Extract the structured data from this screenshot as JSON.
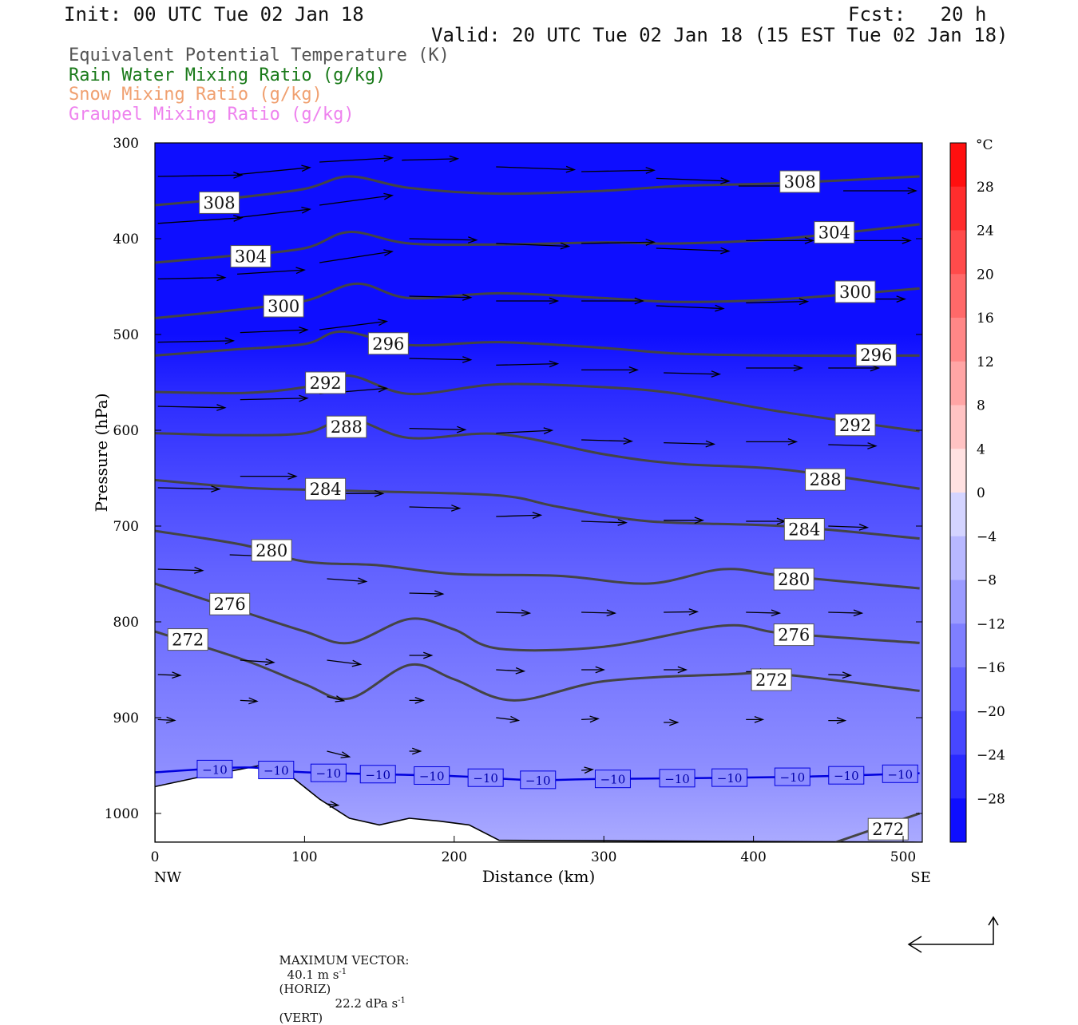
{
  "header": {
    "init": "Init: 00 UTC Tue 02 Jan 18",
    "fcst": "Fcst:   20 h",
    "valid": "Valid: 20 UTC Tue 02 Jan 18 (15 EST Tue 02 Jan 18)"
  },
  "legend": [
    {
      "label": "Equivalent Potential Temperature (K)",
      "color": "#555555"
    },
    {
      "label": "Rain Water Mixing Ratio (g/kg)",
      "color": "#1a7a1a"
    },
    {
      "label": "Snow Mixing Ratio (g/kg)",
      "color": "#f0a070"
    },
    {
      "label": "Graupel Mixing Ratio (g/kg)",
      "color": "#ee82ee"
    }
  ],
  "footer": {
    "max_vector_label": "MAXIMUM VECTOR:",
    "horiz_value": "40.1 m s",
    "horiz_unit": "(HORIZ)",
    "vert_value": "22.2 dPa s",
    "vert_unit": "(VERT)",
    "exponent": "-1"
  },
  "chart_data": {
    "type": "cross-section",
    "xlabel": "Distance (km)",
    "ylabel": "Pressure (hPa)",
    "xlim": [
      0,
      511
    ],
    "ylim": [
      1030,
      300
    ],
    "x_ticks": [
      0,
      100,
      200,
      300,
      400,
      500
    ],
    "y_ticks": [
      300,
      400,
      500,
      600,
      700,
      800,
      900,
      1000
    ],
    "x_end_labels": {
      "left": "NW",
      "right": "SE"
    },
    "colorbar": {
      "unit": "°C",
      "tick_labels": [
        "28",
        "24",
        "20",
        "16",
        "12",
        "8",
        "4",
        "0",
        "−4",
        "−8",
        "−12",
        "−16",
        "−20",
        "−24",
        "−28"
      ],
      "range": [
        -32,
        32
      ]
    },
    "temperature_fill": [
      {
        "p": 300,
        "t": -30
      },
      {
        "p": 500,
        "t": -30
      },
      {
        "p": 560,
        "t": -26
      },
      {
        "p": 650,
        "t": -22
      },
      {
        "p": 750,
        "t": -18
      },
      {
        "p": 850,
        "t": -15
      },
      {
        "p": 950,
        "t": -12
      },
      {
        "p": 1030,
        "t": -8
      }
    ],
    "theta_e_contours": [
      {
        "value": 308,
        "points": [
          [
            0,
            365
          ],
          [
            50,
            358
          ],
          [
            100,
            348
          ],
          [
            130,
            335
          ],
          [
            170,
            347
          ],
          [
            230,
            353
          ],
          [
            300,
            350
          ],
          [
            350,
            345
          ],
          [
            420,
            342
          ],
          [
            511,
            335
          ]
        ],
        "labels": [
          {
            "x": 43,
            "p": 362
          },
          {
            "x": 431,
            "p": 340
          }
        ]
      },
      {
        "value": 304,
        "points": [
          [
            0,
            425
          ],
          [
            50,
            418
          ],
          [
            100,
            410
          ],
          [
            130,
            393
          ],
          [
            170,
            405
          ],
          [
            230,
            406
          ],
          [
            300,
            404
          ],
          [
            350,
            405
          ],
          [
            420,
            400
          ],
          [
            511,
            385
          ]
        ],
        "labels": [
          {
            "x": 64,
            "p": 418
          },
          {
            "x": 454,
            "p": 393
          }
        ]
      },
      {
        "value": 300,
        "points": [
          [
            0,
            483
          ],
          [
            50,
            475
          ],
          [
            100,
            465
          ],
          [
            135,
            447
          ],
          [
            170,
            462
          ],
          [
            230,
            457
          ],
          [
            300,
            462
          ],
          [
            350,
            466
          ],
          [
            420,
            463
          ],
          [
            511,
            452
          ]
        ],
        "labels": [
          {
            "x": 86,
            "p": 470
          },
          {
            "x": 468,
            "p": 455
          }
        ]
      },
      {
        "value": 296,
        "points": [
          [
            0,
            522
          ],
          [
            50,
            516
          ],
          [
            100,
            510
          ],
          [
            125,
            497
          ],
          [
            170,
            511
          ],
          [
            230,
            508
          ],
          [
            300,
            514
          ],
          [
            350,
            520
          ],
          [
            420,
            522
          ],
          [
            511,
            522
          ]
        ],
        "labels": [
          {
            "x": 156,
            "p": 509
          },
          {
            "x": 482,
            "p": 521
          }
        ]
      },
      {
        "value": 292,
        "points": [
          [
            0,
            560
          ],
          [
            60,
            561
          ],
          [
            100,
            555
          ],
          [
            130,
            543
          ],
          [
            170,
            562
          ],
          [
            230,
            552
          ],
          [
            300,
            555
          ],
          [
            350,
            562
          ],
          [
            420,
            581
          ],
          [
            511,
            601
          ]
        ],
        "labels": [
          {
            "x": 114,
            "p": 550
          },
          {
            "x": 468,
            "p": 594
          }
        ]
      },
      {
        "value": 288,
        "points": [
          [
            0,
            603
          ],
          [
            50,
            605
          ],
          [
            100,
            603
          ],
          [
            130,
            588
          ],
          [
            170,
            608
          ],
          [
            230,
            604
          ],
          [
            300,
            625
          ],
          [
            350,
            635
          ],
          [
            420,
            641
          ],
          [
            511,
            661
          ]
        ],
        "labels": [
          {
            "x": 128,
            "p": 596
          },
          {
            "x": 448,
            "p": 651
          }
        ]
      },
      {
        "value": 284,
        "points": [
          [
            0,
            652
          ],
          [
            60,
            660
          ],
          [
            100,
            662
          ],
          [
            150,
            664
          ],
          [
            230,
            668
          ],
          [
            270,
            680
          ],
          [
            330,
            695
          ],
          [
            420,
            700
          ],
          [
            511,
            713
          ]
        ],
        "labels": [
          {
            "x": 114,
            "p": 661
          },
          {
            "x": 434,
            "p": 703
          }
        ]
      },
      {
        "value": 280,
        "points": [
          [
            0,
            705
          ],
          [
            60,
            720
          ],
          [
            100,
            737
          ],
          [
            150,
            741
          ],
          [
            200,
            750
          ],
          [
            270,
            752
          ],
          [
            330,
            760
          ],
          [
            380,
            745
          ],
          [
            420,
            752
          ],
          [
            511,
            765
          ]
        ],
        "labels": [
          {
            "x": 78,
            "p": 725
          },
          {
            "x": 427,
            "p": 755
          }
        ]
      },
      {
        "value": 276,
        "points": [
          [
            0,
            760
          ],
          [
            60,
            790
          ],
          [
            100,
            810
          ],
          [
            130,
            822
          ],
          [
            170,
            797
          ],
          [
            200,
            808
          ],
          [
            230,
            828
          ],
          [
            300,
            826
          ],
          [
            380,
            804
          ],
          [
            420,
            812
          ],
          [
            511,
            822
          ]
        ],
        "labels": [
          {
            "x": 50,
            "p": 781
          },
          {
            "x": 427,
            "p": 813
          }
        ]
      },
      {
        "value": 272,
        "points": [
          [
            0,
            810
          ],
          [
            60,
            840
          ],
          [
            100,
            865
          ],
          [
            130,
            880
          ],
          [
            170,
            845
          ],
          [
            200,
            860
          ],
          [
            240,
            882
          ],
          [
            300,
            862
          ],
          [
            380,
            855
          ],
          [
            420,
            855
          ],
          [
            511,
            872
          ]
        ],
        "labels": [
          {
            "x": 22,
            "p": 818
          },
          {
            "x": 412,
            "p": 860
          }
        ]
      },
      {
        "value": 272,
        "points": [
          [
            455,
            1030
          ],
          [
            511,
            1000
          ]
        ],
        "labels": [
          {
            "x": 490,
            "p": 1016
          }
        ]
      }
    ],
    "isotherm": {
      "value": "−10",
      "color": "#0000dd",
      "points": [
        [
          0,
          957
        ],
        [
          60,
          952
        ],
        [
          100,
          957
        ],
        [
          200,
          961
        ],
        [
          250,
          965
        ],
        [
          300,
          964
        ],
        [
          420,
          962
        ],
        [
          511,
          958
        ]
      ],
      "label_positions": [
        40,
        81,
        116,
        149,
        185,
        221,
        256,
        306,
        349,
        384,
        426,
        462,
        498
      ]
    },
    "terrain": [
      [
        0,
        972
      ],
      [
        30,
        962
      ],
      [
        70,
        950
      ],
      [
        90,
        960
      ],
      [
        110,
        985
      ],
      [
        130,
        1005
      ],
      [
        150,
        1012
      ],
      [
        170,
        1005
      ],
      [
        190,
        1008
      ],
      [
        210,
        1012
      ],
      [
        230,
        1028
      ],
      [
        511,
        1030
      ]
    ],
    "wind_vectors": [
      {
        "x": 2,
        "p": 335,
        "u": 30,
        "w": 0.5
      },
      {
        "x": 55,
        "p": 333,
        "u": 26,
        "w": 2.5
      },
      {
        "x": 110,
        "p": 320,
        "u": 26,
        "w": 1.5
      },
      {
        "x": 2,
        "p": 384,
        "u": 30,
        "w": 2
      },
      {
        "x": 55,
        "p": 378,
        "u": 26,
        "w": 3
      },
      {
        "x": 110,
        "p": 365,
        "u": 26,
        "w": 3.5
      },
      {
        "x": 2,
        "p": 442,
        "u": 24,
        "w": 0.5
      },
      {
        "x": 55,
        "p": 437,
        "u": 24,
        "w": 1.5
      },
      {
        "x": 110,
        "p": 425,
        "u": 26,
        "w": 4
      },
      {
        "x": 2,
        "p": 508,
        "u": 27,
        "w": 0.5
      },
      {
        "x": 57,
        "p": 498,
        "u": 24,
        "w": 1
      },
      {
        "x": 110,
        "p": 495,
        "u": 24,
        "w": 3
      },
      {
        "x": 2,
        "p": 575,
        "u": 24,
        "w": -0.5
      },
      {
        "x": 57,
        "p": 568,
        "u": 24,
        "w": 0.5
      },
      {
        "x": 110,
        "p": 562,
        "u": 24,
        "w": 2
      },
      {
        "x": 165,
        "p": 318,
        "u": 20,
        "w": 0.5
      },
      {
        "x": 228,
        "p": 325,
        "u": 28,
        "w": -1
      },
      {
        "x": 285,
        "p": 330,
        "u": 26,
        "w": 0.5
      },
      {
        "x": 335,
        "p": 337,
        "u": 26,
        "w": -1
      },
      {
        "x": 390,
        "p": 345,
        "u": 26,
        "w": 0
      },
      {
        "x": 460,
        "p": 350,
        "u": 26,
        "w": 0
      },
      {
        "x": 170,
        "p": 400,
        "u": 24,
        "w": -0.5
      },
      {
        "x": 228,
        "p": 405,
        "u": 26,
        "w": -1
      },
      {
        "x": 285,
        "p": 405,
        "u": 26,
        "w": 0.5
      },
      {
        "x": 335,
        "p": 410,
        "u": 26,
        "w": -1
      },
      {
        "x": 395,
        "p": 402,
        "u": 24,
        "w": 0
      },
      {
        "x": 460,
        "p": 402,
        "u": 24,
        "w": 0
      },
      {
        "x": 170,
        "p": 460,
        "u": 22,
        "w": -0.5
      },
      {
        "x": 228,
        "p": 465,
        "u": 22,
        "w": 0
      },
      {
        "x": 285,
        "p": 465,
        "u": 22,
        "w": 0
      },
      {
        "x": 335,
        "p": 470,
        "u": 24,
        "w": -1
      },
      {
        "x": 395,
        "p": 467,
        "u": 22,
        "w": 0.5
      },
      {
        "x": 460,
        "p": 463,
        "u": 22,
        "w": 0
      },
      {
        "x": 170,
        "p": 525,
        "u": 22,
        "w": -0.5
      },
      {
        "x": 228,
        "p": 532,
        "u": 22,
        "w": 0.5
      },
      {
        "x": 285,
        "p": 537,
        "u": 20,
        "w": 0
      },
      {
        "x": 340,
        "p": 540,
        "u": 20,
        "w": -0.5
      },
      {
        "x": 395,
        "p": 535,
        "u": 20,
        "w": 0
      },
      {
        "x": 450,
        "p": 535,
        "u": 18,
        "w": 0
      },
      {
        "x": 170,
        "p": 598,
        "u": 20,
        "w": -0.5
      },
      {
        "x": 228,
        "p": 603,
        "u": 20,
        "w": 1
      },
      {
        "x": 285,
        "p": 610,
        "u": 18,
        "w": -0.5
      },
      {
        "x": 340,
        "p": 613,
        "u": 18,
        "w": -0.5
      },
      {
        "x": 395,
        "p": 612,
        "u": 18,
        "w": 0
      },
      {
        "x": 450,
        "p": 615,
        "u": 17,
        "w": -0.5
      },
      {
        "x": 2,
        "p": 660,
        "u": 22,
        "w": -0.5
      },
      {
        "x": 57,
        "p": 648,
        "u": 20,
        "w": 0
      },
      {
        "x": 115,
        "p": 666,
        "u": 20,
        "w": 0
      },
      {
        "x": 170,
        "p": 680,
        "u": 18,
        "w": -0.5
      },
      {
        "x": 228,
        "p": 690,
        "u": 16,
        "w": 0.5
      },
      {
        "x": 285,
        "p": 695,
        "u": 16,
        "w": -0.5
      },
      {
        "x": 340,
        "p": 694,
        "u": 14,
        "w": 0
      },
      {
        "x": 395,
        "p": 695,
        "u": 14,
        "w": 0
      },
      {
        "x": 450,
        "p": 700,
        "u": 14,
        "w": -0.5
      },
      {
        "x": 2,
        "p": 745,
        "u": 16,
        "w": -0.5
      },
      {
        "x": 50,
        "p": 730,
        "u": 14,
        "w": -0.5
      },
      {
        "x": 115,
        "p": 755,
        "u": 14,
        "w": -1
      },
      {
        "x": 170,
        "p": 770,
        "u": 12,
        "w": -0.3
      },
      {
        "x": 228,
        "p": 790,
        "u": 12,
        "w": -0.3
      },
      {
        "x": 285,
        "p": 790,
        "u": 12,
        "w": -0.3
      },
      {
        "x": 340,
        "p": 790,
        "u": 12,
        "w": 0.2
      },
      {
        "x": 395,
        "p": 790,
        "u": 12,
        "w": -0.3
      },
      {
        "x": 450,
        "p": 790,
        "u": 12,
        "w": -0.3
      },
      {
        "x": 2,
        "p": 855,
        "u": 8,
        "w": -0.3
      },
      {
        "x": 57,
        "p": 840,
        "u": 12,
        "w": -0.8
      },
      {
        "x": 115,
        "p": 840,
        "u": 12,
        "w": -1.5
      },
      {
        "x": 170,
        "p": 835,
        "u": 8,
        "w": 0
      },
      {
        "x": 228,
        "p": 850,
        "u": 10,
        "w": -0.5
      },
      {
        "x": 285,
        "p": 850,
        "u": 8,
        "w": 0
      },
      {
        "x": 340,
        "p": 850,
        "u": 8,
        "w": 0
      },
      {
        "x": 395,
        "p": 852,
        "u": 8,
        "w": 0
      },
      {
        "x": 450,
        "p": 855,
        "u": 8,
        "w": -0.3
      },
      {
        "x": 2,
        "p": 902,
        "u": 6,
        "w": -0.3
      },
      {
        "x": 57,
        "p": 882,
        "u": 6,
        "w": -0.3
      },
      {
        "x": 115,
        "p": 878,
        "u": 6,
        "w": -1.5
      },
      {
        "x": 170,
        "p": 882,
        "u": 5,
        "w": 0
      },
      {
        "x": 228,
        "p": 900,
        "u": 8,
        "w": -1
      },
      {
        "x": 285,
        "p": 902,
        "u": 6,
        "w": 0.3
      },
      {
        "x": 340,
        "p": 905,
        "u": 5,
        "w": 0
      },
      {
        "x": 395,
        "p": 902,
        "u": 6,
        "w": 0
      },
      {
        "x": 450,
        "p": 903,
        "u": 6,
        "w": 0
      },
      {
        "x": 115,
        "p": 935,
        "u": 8,
        "w": -2
      },
      {
        "x": 170,
        "p": 935,
        "u": 4,
        "w": 0
      },
      {
        "x": 285,
        "p": 955,
        "u": 4,
        "w": 0.3
      },
      {
        "x": 115,
        "p": 990,
        "u": 4,
        "w": -0.5
      }
    ]
  }
}
